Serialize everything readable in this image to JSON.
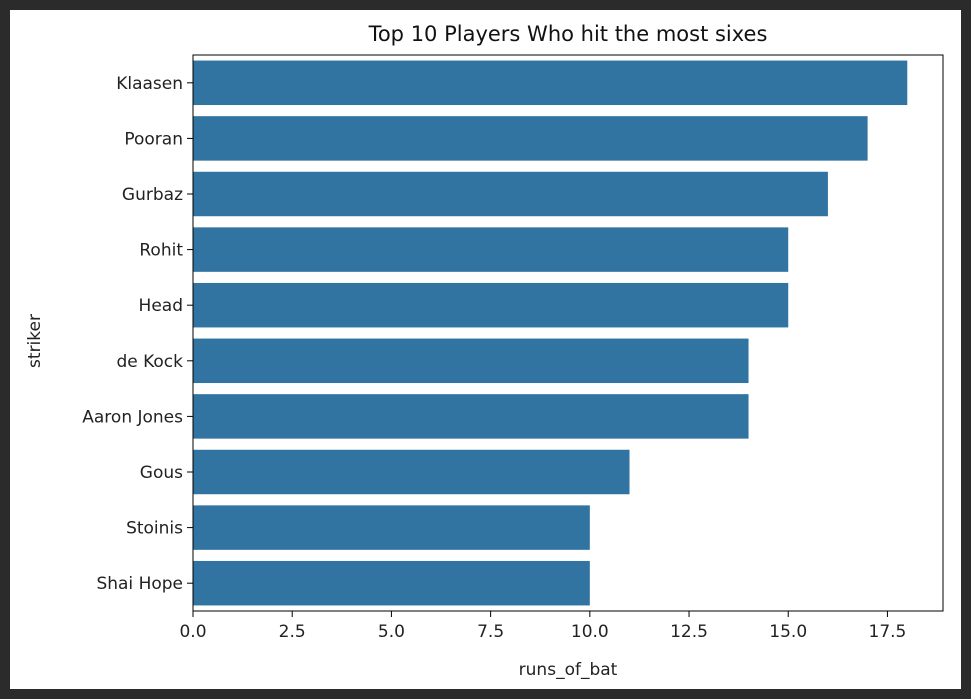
{
  "chart_data": {
    "type": "bar",
    "orientation": "horizontal",
    "title": "Top 10 Players Who hit the most sixes",
    "xlabel": "runs_of_bat",
    "ylabel": "striker",
    "categories": [
      "Klaasen",
      "Pooran",
      "Gurbaz",
      "Rohit",
      "Head",
      "de Kock",
      "Aaron Jones",
      "Gous",
      "Stoinis",
      "Shai Hope"
    ],
    "values": [
      18,
      17,
      16,
      15,
      15,
      14,
      14,
      11,
      10,
      10
    ],
    "xlim": [
      0,
      18.9
    ],
    "xticks": [
      0.0,
      2.5,
      5.0,
      7.5,
      10.0,
      12.5,
      15.0,
      17.5
    ],
    "xtick_labels": [
      "0.0",
      "2.5",
      "5.0",
      "7.5",
      "10.0",
      "12.5",
      "15.0",
      "17.5"
    ],
    "grid": false,
    "bar_color": "#3274a1"
  }
}
